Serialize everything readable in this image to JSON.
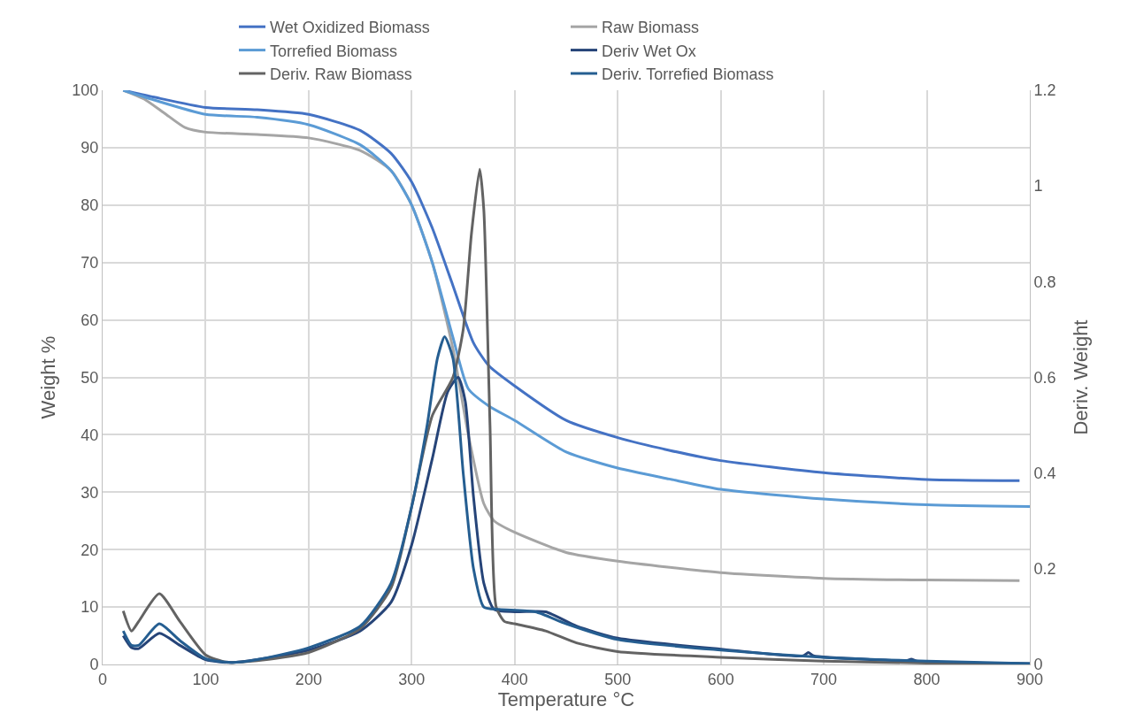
{
  "chart_data": {
    "type": "line",
    "xlabel": "Temperature °C",
    "ylabel": "Weight %",
    "y2label": "Deriv. Weight",
    "xlim": [
      0,
      900
    ],
    "xticks": [
      0,
      100,
      200,
      300,
      400,
      500,
      600,
      700,
      800,
      900
    ],
    "ylim": [
      0,
      100
    ],
    "yticks": [
      0,
      10,
      20,
      30,
      40,
      50,
      60,
      70,
      80,
      90,
      100
    ],
    "y2lim": [
      0,
      1.2
    ],
    "y2ticks": [
      0,
      0.2,
      0.4,
      0.6,
      0.8,
      1,
      1.2
    ],
    "grid": true,
    "legend": "top",
    "marker": "none",
    "line_style": "solid",
    "series": [
      {
        "name": "Wet Oxidized Biomass",
        "color": "#4472c4",
        "x": [
          20,
          50,
          100,
          150,
          200,
          250,
          280,
          300,
          320,
          340,
          360,
          375,
          400,
          450,
          500,
          550,
          600,
          700,
          800,
          890
        ],
        "values": [
          100,
          98.8,
          97,
          96.6,
          95.8,
          93,
          89,
          84,
          76,
          66,
          56,
          52,
          48.5,
          42.5,
          39.5,
          37.3,
          35.5,
          33.4,
          32.2,
          32
        ]
      },
      {
        "name": "Raw Biomass",
        "color": "#a5a5a5",
        "x": [
          20,
          40,
          60,
          80,
          100,
          150,
          200,
          250,
          280,
          300,
          320,
          340,
          355,
          370,
          380,
          400,
          450,
          500,
          600,
          700,
          800,
          890
        ],
        "values": [
          100,
          98.5,
          96,
          93.5,
          92.7,
          92.3,
          91.7,
          89.5,
          86,
          80,
          70,
          55,
          40,
          28,
          25,
          23,
          19.5,
          18,
          16,
          15,
          14.7,
          14.6
        ]
      },
      {
        "name": "Torrefied Biomass",
        "color": "#5b9bd5",
        "x": [
          20,
          50,
          100,
          150,
          200,
          250,
          280,
          300,
          320,
          340,
          355,
          375,
          400,
          450,
          500,
          550,
          600,
          700,
          800,
          900
        ],
        "values": [
          100,
          98.3,
          95.8,
          95.3,
          94,
          90.5,
          86,
          80,
          70,
          57,
          48,
          45,
          42.5,
          37,
          34.2,
          32.3,
          30.5,
          28.8,
          27.8,
          27.5
        ]
      },
      {
        "name": "Deriv Wet Ox",
        "color": "#264478",
        "axis": "y2",
        "x": [
          20,
          28,
          35,
          55,
          75,
          100,
          125,
          150,
          200,
          250,
          280,
          300,
          320,
          335,
          345,
          352,
          360,
          370,
          380,
          400,
          430,
          460,
          500,
          600,
          680,
          685,
          690,
          750,
          780,
          785,
          790,
          900
        ],
        "values": [
          0.06,
          0.035,
          0.033,
          0.065,
          0.04,
          0.01,
          0.004,
          0.01,
          0.03,
          0.07,
          0.13,
          0.25,
          0.43,
          0.57,
          0.6,
          0.55,
          0.35,
          0.17,
          0.115,
          0.11,
          0.11,
          0.08,
          0.055,
          0.032,
          0.018,
          0.025,
          0.018,
          0.01,
          0.008,
          0.011,
          0.007,
          0.002
        ]
      },
      {
        "name": "Deriv. Raw Biomass",
        "color": "#636363",
        "axis": "y2",
        "x": [
          20,
          28,
          35,
          55,
          75,
          100,
          120,
          150,
          200,
          250,
          280,
          300,
          320,
          340,
          350,
          358,
          366,
          370,
          376,
          382,
          390,
          400,
          430,
          460,
          500,
          600,
          700,
          800,
          890
        ],
        "values": [
          0.112,
          0.07,
          0.09,
          0.148,
          0.09,
          0.02,
          0.005,
          0.008,
          0.025,
          0.075,
          0.16,
          0.33,
          0.52,
          0.6,
          0.7,
          0.9,
          1.035,
          0.95,
          0.5,
          0.12,
          0.09,
          0.085,
          0.07,
          0.045,
          0.027,
          0.015,
          0.007,
          0.003,
          0.002
        ]
      },
      {
        "name": "Deriv. Torrefied Biomass",
        "color": "#255e91",
        "axis": "y2",
        "x": [
          20,
          28,
          35,
          55,
          75,
          100,
          125,
          150,
          200,
          250,
          280,
          300,
          315,
          325,
          332,
          340,
          350,
          360,
          370,
          385,
          420,
          450,
          500,
          600,
          700,
          800,
          900
        ],
        "values": [
          0.07,
          0.04,
          0.04,
          0.085,
          0.05,
          0.012,
          0.004,
          0.01,
          0.035,
          0.08,
          0.17,
          0.33,
          0.5,
          0.64,
          0.685,
          0.64,
          0.4,
          0.2,
          0.12,
          0.115,
          0.11,
          0.085,
          0.052,
          0.03,
          0.015,
          0.007,
          0.002
        ]
      }
    ]
  }
}
